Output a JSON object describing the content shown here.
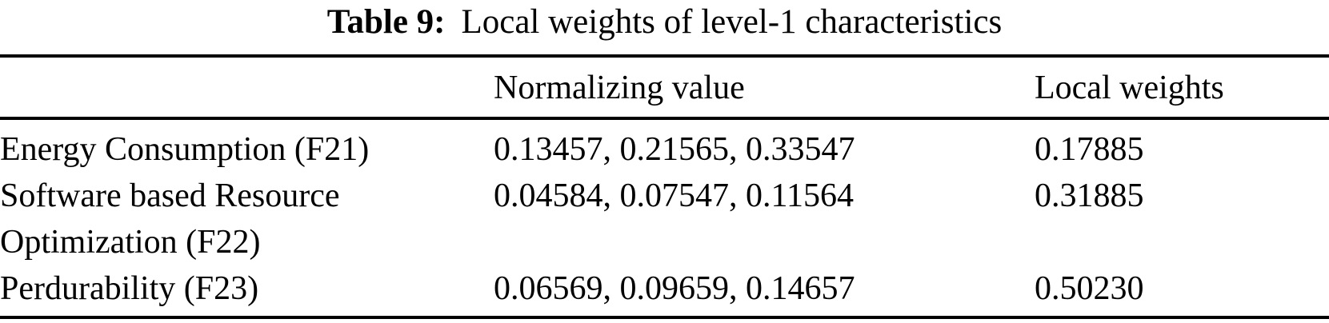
{
  "caption": {
    "label": "Table 9:",
    "text": "Local weights of level-1 characteristics"
  },
  "table": {
    "columns": [
      "",
      "Normalizing value",
      "Local weights"
    ],
    "rows": [
      {
        "characteristic": "Energy Consumption (F21)",
        "normalizing_value": "0.13457, 0.21565, 0.33547",
        "local_weight": "0.17885"
      },
      {
        "characteristic": "Software based Resource Optimization (F22)",
        "normalizing_value": "0.04584, 0.07547, 0.11564",
        "local_weight": "0.31885"
      },
      {
        "characteristic": "Perdurability (F23)",
        "normalizing_value": "0.06569, 0.09659, 0.14657",
        "local_weight": "0.50230"
      }
    ]
  }
}
